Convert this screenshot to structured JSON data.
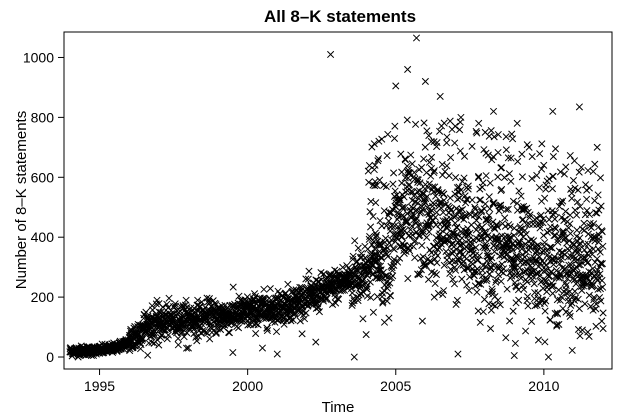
{
  "chart_data": {
    "type": "scatter",
    "title": "All 8–K statements",
    "xlabel": "Time",
    "ylabel": "Number of 8–K statements",
    "xlim": [
      1993.8,
      2012.3
    ],
    "ylim": [
      -40,
      1085
    ],
    "xticks": [
      1995,
      2000,
      2005,
      2010
    ],
    "yticks": [
      0,
      200,
      400,
      600,
      800,
      1000
    ],
    "marker": "x",
    "grid": false,
    "legend": "none",
    "series": [
      {
        "trend": [
          [
            1994.0,
            20
          ],
          [
            1995.0,
            22
          ],
          [
            1995.5,
            30
          ],
          [
            1996.0,
            50
          ],
          [
            1996.5,
            100
          ],
          [
            1997.0,
            115
          ],
          [
            1998.0,
            125
          ],
          [
            1999.0,
            135
          ],
          [
            2000.0,
            148
          ],
          [
            2001.0,
            165
          ],
          [
            2002.0,
            195
          ],
          [
            2003.0,
            240
          ],
          [
            2004.0,
            290
          ],
          [
            2004.5,
            330
          ],
          [
            2005.0,
            420
          ],
          [
            2005.5,
            450
          ],
          [
            2006.0,
            450
          ],
          [
            2007.0,
            390
          ],
          [
            2008.0,
            360
          ],
          [
            2009.0,
            345
          ],
          [
            2010.0,
            320
          ],
          [
            2011.0,
            300
          ],
          [
            2012.0,
            290
          ]
        ],
        "highlights": [
          [
            2002.8,
            1010
          ],
          [
            2005.7,
            1065
          ],
          [
            2005.4,
            960
          ],
          [
            2005.0,
            905
          ],
          [
            2006.0,
            920
          ],
          [
            2006.5,
            870
          ],
          [
            2007.2,
            800
          ],
          [
            2008.3,
            820
          ],
          [
            2009.1,
            780
          ],
          [
            2010.3,
            820
          ],
          [
            2011.2,
            835
          ],
          [
            2011.8,
            700
          ],
          [
            2007.8,
            780
          ],
          [
            2006.9,
            760
          ],
          [
            2004.3,
            640
          ],
          [
            2009.5,
            700
          ]
        ],
        "outliers": [
          [
            2003.6,
            0
          ],
          [
            2005.9,
            120
          ],
          [
            2008.2,
            95
          ],
          [
            2009.0,
            5
          ],
          [
            2011.3,
            90
          ],
          [
            2012.0,
            95
          ],
          [
            2007.1,
            10
          ],
          [
            2006.3,
            200
          ],
          [
            2004.0,
            75
          ],
          [
            2002.3,
            50
          ],
          [
            2001.0,
            10
          ],
          [
            2000.5,
            30
          ],
          [
            1999.5,
            15
          ],
          [
            1998.0,
            30
          ],
          [
            1997.0,
            40
          ]
        ]
      }
    ]
  }
}
